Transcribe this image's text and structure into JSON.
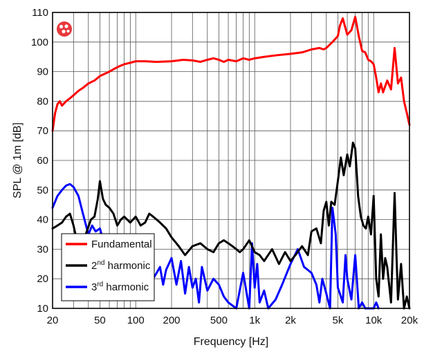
{
  "chart_data": {
    "type": "line",
    "title": "",
    "xlabel": "Frequency [Hz]",
    "ylabel": "SPL @ 1m [dB]",
    "xscale": "log",
    "xlim": [
      20,
      20000
    ],
    "ylim": [
      10,
      110
    ],
    "grid": true,
    "legend_position": "bottom-left",
    "xtick_values": [
      20,
      50,
      100,
      200,
      500,
      1000,
      2000,
      5000,
      10000,
      20000
    ],
    "xtick_labels": [
      "20",
      "50",
      "100",
      "200",
      "500",
      "1k",
      "2k",
      "5k",
      "10k",
      "20k"
    ],
    "ytick_values": [
      10,
      20,
      30,
      40,
      50,
      60,
      70,
      80,
      90,
      100,
      110
    ],
    "ytick_labels": [
      "10",
      "20",
      "30",
      "40",
      "50",
      "60",
      "70",
      "80",
      "90",
      "100",
      "110"
    ],
    "logo_icon": "manufacturer-logo-icon",
    "legend": [
      {
        "series": 0,
        "text": "Fundamental",
        "base": "Fundamental",
        "sup": "",
        "rest": ""
      },
      {
        "series": 1,
        "text": "2nd harmonic",
        "base": "2",
        "sup": "nd",
        "rest": " harmonic"
      },
      {
        "series": 2,
        "text": "3rd harmonic",
        "base": "3",
        "sup": "rd",
        "rest": " harmonic"
      }
    ],
    "series": [
      {
        "name": "Fundamental",
        "color": "#ff0000",
        "x": [
          20,
          21,
          22,
          23,
          24,
          26,
          28,
          30,
          33,
          36,
          40,
          45,
          50,
          60,
          70,
          80,
          90,
          100,
          120,
          150,
          200,
          250,
          300,
          350,
          400,
          450,
          500,
          550,
          600,
          700,
          800,
          900,
          1000,
          1200,
          1500,
          2000,
          2500,
          3000,
          3500,
          3800,
          4000,
          4500,
          5000,
          5200,
          5500,
          6000,
          6500,
          7000,
          7500,
          8000,
          8500,
          9000,
          9500,
          10000,
          10500,
          11000,
          11500,
          12000,
          13000,
          14000,
          15000,
          16000,
          17000,
          18000,
          19000,
          20000
        ],
        "y": [
          70,
          76,
          79,
          80,
          78.5,
          80,
          81,
          82,
          83.5,
          84.5,
          86,
          87,
          88.5,
          90,
          91.5,
          92.5,
          93,
          93.5,
          93.5,
          93.3,
          93.5,
          94,
          93.8,
          93.3,
          94,
          94.5,
          94,
          93.3,
          94,
          93.5,
          94.5,
          94,
          94.5,
          95,
          95.5,
          96,
          96.5,
          97.5,
          98,
          97.5,
          98,
          100,
          102,
          105.5,
          108,
          102.5,
          104,
          108.5,
          102,
          97,
          96.5,
          94,
          93.5,
          92.5,
          88,
          83,
          86,
          83,
          87,
          84,
          98,
          86,
          88,
          80,
          76,
          72
        ]
      },
      {
        "name": "2nd harmonic",
        "color": "#000000",
        "x": [
          20,
          22,
          24,
          26,
          28,
          30,
          32,
          35,
          38,
          42,
          45,
          48,
          50,
          53,
          56,
          60,
          65,
          70,
          75,
          80,
          90,
          100,
          110,
          120,
          130,
          140,
          150,
          160,
          180,
          200,
          230,
          260,
          300,
          350,
          400,
          450,
          500,
          550,
          600,
          650,
          700,
          750,
          800,
          900,
          1000,
          1100,
          1200,
          1400,
          1600,
          1800,
          2000,
          2200,
          2500,
          2800,
          3000,
          3300,
          3600,
          3800,
          4000,
          4200,
          4400,
          4700,
          5000,
          5300,
          5600,
          6000,
          6300,
          6700,
          7000,
          7400,
          7800,
          8200,
          8600,
          9000,
          9500,
          10000,
          10500,
          11000,
          11500,
          12000,
          12500,
          13000,
          14000,
          15000,
          15500,
          16000,
          17000,
          18000,
          19000,
          20000
        ],
        "y": [
          37,
          38,
          39,
          41,
          42,
          38,
          33,
          28,
          35,
          40,
          41,
          47,
          53,
          47,
          45,
          44,
          42,
          38,
          40,
          41,
          39,
          41,
          38,
          39,
          42,
          41,
          40,
          39,
          37,
          34,
          31,
          28,
          31,
          32,
          30,
          29,
          32,
          33,
          32,
          31,
          30,
          29,
          30,
          33,
          29,
          28,
          26,
          30,
          25,
          29,
          26,
          28,
          31,
          28,
          36,
          37,
          32,
          43,
          46,
          38,
          46,
          45,
          53,
          61,
          55,
          62,
          58,
          66,
          64,
          48,
          41,
          38,
          37,
          41,
          35,
          48,
          20,
          14,
          35,
          20,
          27,
          24,
          12,
          49,
          30,
          13,
          25,
          10,
          14,
          10
        ]
      },
      {
        "name": "3rd harmonic",
        "color": "#0000ff",
        "x": [
          20,
          22,
          24,
          26,
          28,
          30,
          33,
          36,
          40,
          43,
          46,
          50,
          55,
          60,
          65,
          70,
          80,
          90,
          100,
          110,
          120,
          130,
          140,
          150,
          160,
          170,
          180,
          200,
          220,
          240,
          260,
          280,
          300,
          320,
          340,
          360,
          400,
          450,
          500,
          550,
          600,
          700,
          800,
          900,
          950,
          1000,
          1050,
          1100,
          1200,
          1300,
          1500,
          1700,
          2000,
          2300,
          2600,
          3000,
          3300,
          3500,
          3700,
          4000,
          4300,
          4500,
          4800,
          5000,
          5200,
          5500,
          5800,
          6000,
          6500,
          7000,
          7500,
          8000,
          8500,
          9000,
          9500,
          10000,
          10500,
          11000
        ],
        "y": [
          44,
          48,
          50,
          51.5,
          52,
          51,
          48,
          42,
          35,
          38,
          36,
          37,
          31,
          24,
          34,
          30,
          28,
          26,
          22,
          30,
          18,
          24,
          20,
          22,
          24,
          18,
          23,
          27,
          18,
          26,
          15,
          24,
          17,
          20,
          12,
          24,
          16,
          20,
          18,
          14,
          12,
          10,
          22,
          10,
          32,
          17,
          25,
          12,
          16,
          10,
          13,
          18,
          25,
          30,
          24,
          22,
          18,
          12,
          20,
          15,
          10,
          44,
          35,
          17,
          15,
          12,
          28,
          20,
          13,
          28,
          10,
          12,
          10,
          10,
          10,
          10,
          12,
          10
        ]
      }
    ]
  }
}
